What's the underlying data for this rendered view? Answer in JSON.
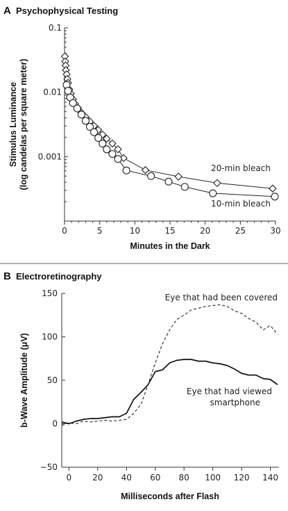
{
  "chart_data": [
    {
      "panel": "A",
      "type": "line",
      "title": "Psychophysical Testing",
      "xlabel": "Minutes in the Dark",
      "ylabel": "Stimulus Luminance (log candelas per square meter)",
      "yscale": "log",
      "xlim": [
        0,
        30
      ],
      "ylim": [
        0.0001,
        0.1
      ],
      "x_ticks": [
        "0",
        "5",
        "10",
        "15",
        "20",
        "25",
        "30"
      ],
      "y_ticks": [
        "0.1",
        "0.01",
        "0.001"
      ],
      "grid": false,
      "series": [
        {
          "name": "20-min bleach",
          "marker": "diamond",
          "x": [
            0.05,
            0.1,
            0.15,
            0.2,
            0.3,
            0.4,
            0.5,
            0.7,
            0.9,
            1.2,
            1.5,
            1.9,
            2.4,
            3.0,
            3.6,
            4.2,
            4.8,
            5.4,
            6.0,
            6.8,
            7.6,
            8.4,
            11.5,
            16.2,
            21.7,
            29.6
          ],
          "y": [
            0.036,
            0.03,
            0.026,
            0.022,
            0.019,
            0.016,
            0.014,
            0.011,
            0.0095,
            0.0078,
            0.0066,
            0.0057,
            0.0048,
            0.0041,
            0.0035,
            0.003,
            0.0026,
            0.0022,
            0.0019,
            0.0016,
            0.0013,
            0.00095,
            0.00062,
            0.00049,
            0.00039,
            0.00032
          ]
        },
        {
          "name": "10-min bleach",
          "marker": "circle",
          "x": [
            0.3,
            0.5,
            0.8,
            1.2,
            1.8,
            2.4,
            3.0,
            3.6,
            4.2,
            4.8,
            5.4,
            6.0,
            6.8,
            7.6,
            8.8,
            12.3,
            14.8,
            17.1,
            21.1,
            29.9
          ],
          "y": [
            0.013,
            0.0105,
            0.0083,
            0.0068,
            0.0056,
            0.0045,
            0.0036,
            0.0029,
            0.0024,
            0.00195,
            0.0016,
            0.0013,
            0.0011,
            0.00092,
            0.00061,
            0.0005,
            0.00041,
            0.00034,
            0.00027,
            0.00024
          ]
        }
      ]
    },
    {
      "panel": "B",
      "type": "line",
      "title": "Electroretinography",
      "xlabel": "Milliseconds after Flash",
      "ylabel": "b-Wave Amplitude (μV)",
      "xlim": [
        -5,
        146
      ],
      "ylim": [
        -50,
        150
      ],
      "x_ticks": [
        "0",
        "20",
        "40",
        "60",
        "80",
        "100",
        "120",
        "140"
      ],
      "y_ticks": [
        "150",
        "100",
        "50",
        "0",
        "−50"
      ],
      "grid": false,
      "series": [
        {
          "name": "Eye that had been covered",
          "style": "dashed",
          "x": [
            -5,
            0,
            5,
            10,
            15,
            20,
            25,
            30,
            35,
            40,
            45,
            50,
            55,
            60,
            65,
            70,
            75,
            80,
            85,
            90,
            95,
            100,
            105,
            110,
            115,
            120,
            125,
            130,
            135,
            140,
            145
          ],
          "y": [
            -2,
            1,
            0,
            3,
            2,
            3,
            4,
            3,
            4,
            5,
            12,
            22,
            45,
            70,
            92,
            108,
            120,
            125,
            131,
            133,
            135,
            136,
            137,
            135,
            130,
            127,
            121,
            117,
            108,
            113,
            103
          ]
        },
        {
          "name": "Eye that had viewed smartphone",
          "style": "solid",
          "x": [
            -5,
            0,
            5,
            10,
            15,
            20,
            25,
            30,
            35,
            40,
            45,
            50,
            55,
            60,
            65,
            70,
            75,
            80,
            85,
            90,
            95,
            100,
            105,
            110,
            115,
            120,
            125,
            130,
            135,
            140,
            145
          ],
          "y": [
            2,
            0,
            3,
            5,
            6,
            6,
            7,
            8,
            8,
            12,
            28,
            36,
            45,
            60,
            62,
            70,
            73,
            74,
            74,
            72,
            72,
            70,
            69,
            67,
            63,
            58,
            56,
            56,
            52,
            51,
            45
          ]
        }
      ]
    }
  ],
  "panel_a": {
    "letter": "A",
    "title": "Psychophysical Testing",
    "ylabel_line1": "Stimulus Luminance",
    "ylabel_line2": "(log candelas per square meter)",
    "xlabel": "Minutes in the Dark",
    "label_20": "20-min bleach",
    "label_10": "10-min bleach"
  },
  "panel_b": {
    "letter": "B",
    "title": "Electroretinography",
    "ylabel": "b-Wave Amplitude (μV)",
    "xlabel": "Milliseconds after Flash",
    "label_covered": "Eye that had been covered",
    "label_viewed_1": "Eye that had viewed",
    "label_viewed_2": "smartphone"
  }
}
